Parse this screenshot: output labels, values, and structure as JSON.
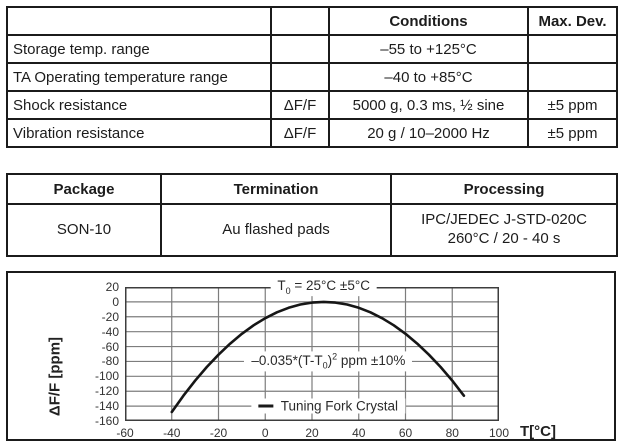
{
  "spec_table": {
    "headers": [
      "",
      "",
      "Conditions",
      "Max. Dev."
    ],
    "rows": [
      {
        "parameter": "Storage temp. range",
        "symbol": "",
        "conditions": "–55 to +125°C",
        "max_dev": ""
      },
      {
        "parameter": "TA Operating temperature range",
        "symbol": "",
        "conditions": "–40 to +85°C",
        "max_dev": ""
      },
      {
        "parameter": "Shock resistance",
        "symbol": "ΔF/F",
        "conditions": "5000 g, 0.3 ms, ½ sine",
        "max_dev": "±5 ppm"
      },
      {
        "parameter": "Vibration resistance",
        "symbol": "ΔF/F",
        "conditions": "20 g / 10–2000 Hz",
        "max_dev": "±5 ppm"
      }
    ]
  },
  "package_table": {
    "headers": [
      "Package",
      "Termination",
      "Processing"
    ],
    "row": {
      "package": "SON-10",
      "termination": "Au flashed pads",
      "processing_line1": "IPC/JEDEC J-STD-020C",
      "processing_line2": "260°C / 20 - 40 s"
    }
  },
  "chart_data": {
    "type": "line",
    "title_annotation": {
      "pre": "T",
      "sub": "0",
      "post": " = 25°C ±5°C"
    },
    "formula_annotation": {
      "pre": "–0.035*(T-T",
      "sub": "0",
      "mid": ")",
      "sup": "2",
      "post": " ppm ±10%"
    },
    "legend": {
      "label": "Tuning Fork Crystal",
      "position": "inside-bottom-center"
    },
    "xlabel": "T[°C]",
    "ylabel": "ΔF/F [ppm]",
    "xlim": [
      -60,
      100
    ],
    "ylim": [
      -160,
      20
    ],
    "xticks": [
      -60,
      -40,
      -20,
      0,
      20,
      40,
      60,
      80,
      100
    ],
    "yticks": [
      20,
      0,
      -20,
      -40,
      -60,
      -80,
      -100,
      -120,
      -140,
      -160
    ],
    "grid": true,
    "annotation_y_positions": {
      "title_ppm": 20,
      "formula_ppm": -80,
      "legend_ppm": -140
    },
    "series": [
      {
        "name": "Tuning Fork Crystal",
        "points": [
          [
            -40,
            -147.9
          ],
          [
            -35,
            -126
          ],
          [
            -30,
            -105.9
          ],
          [
            -25,
            -87.5
          ],
          [
            -20,
            -70.9
          ],
          [
            -15,
            -56
          ],
          [
            -10,
            -42.9
          ],
          [
            -5,
            -31.5
          ],
          [
            0,
            -21.9
          ],
          [
            5,
            -14
          ],
          [
            10,
            -7.9
          ],
          [
            15,
            -3.5
          ],
          [
            20,
            -0.9
          ],
          [
            25,
            0
          ],
          [
            30,
            -0.9
          ],
          [
            35,
            -3.5
          ],
          [
            40,
            -7.9
          ],
          [
            45,
            -14
          ],
          [
            50,
            -21.9
          ],
          [
            55,
            -31.5
          ],
          [
            60,
            -42.9
          ],
          [
            65,
            -56
          ],
          [
            70,
            -70.9
          ],
          [
            75,
            -87.5
          ],
          [
            80,
            -105.9
          ],
          [
            85,
            -126
          ]
        ]
      }
    ],
    "colors": {
      "curve": "#161616",
      "grid": "#7d7d7d",
      "frame": "#3d3d3d"
    }
  }
}
